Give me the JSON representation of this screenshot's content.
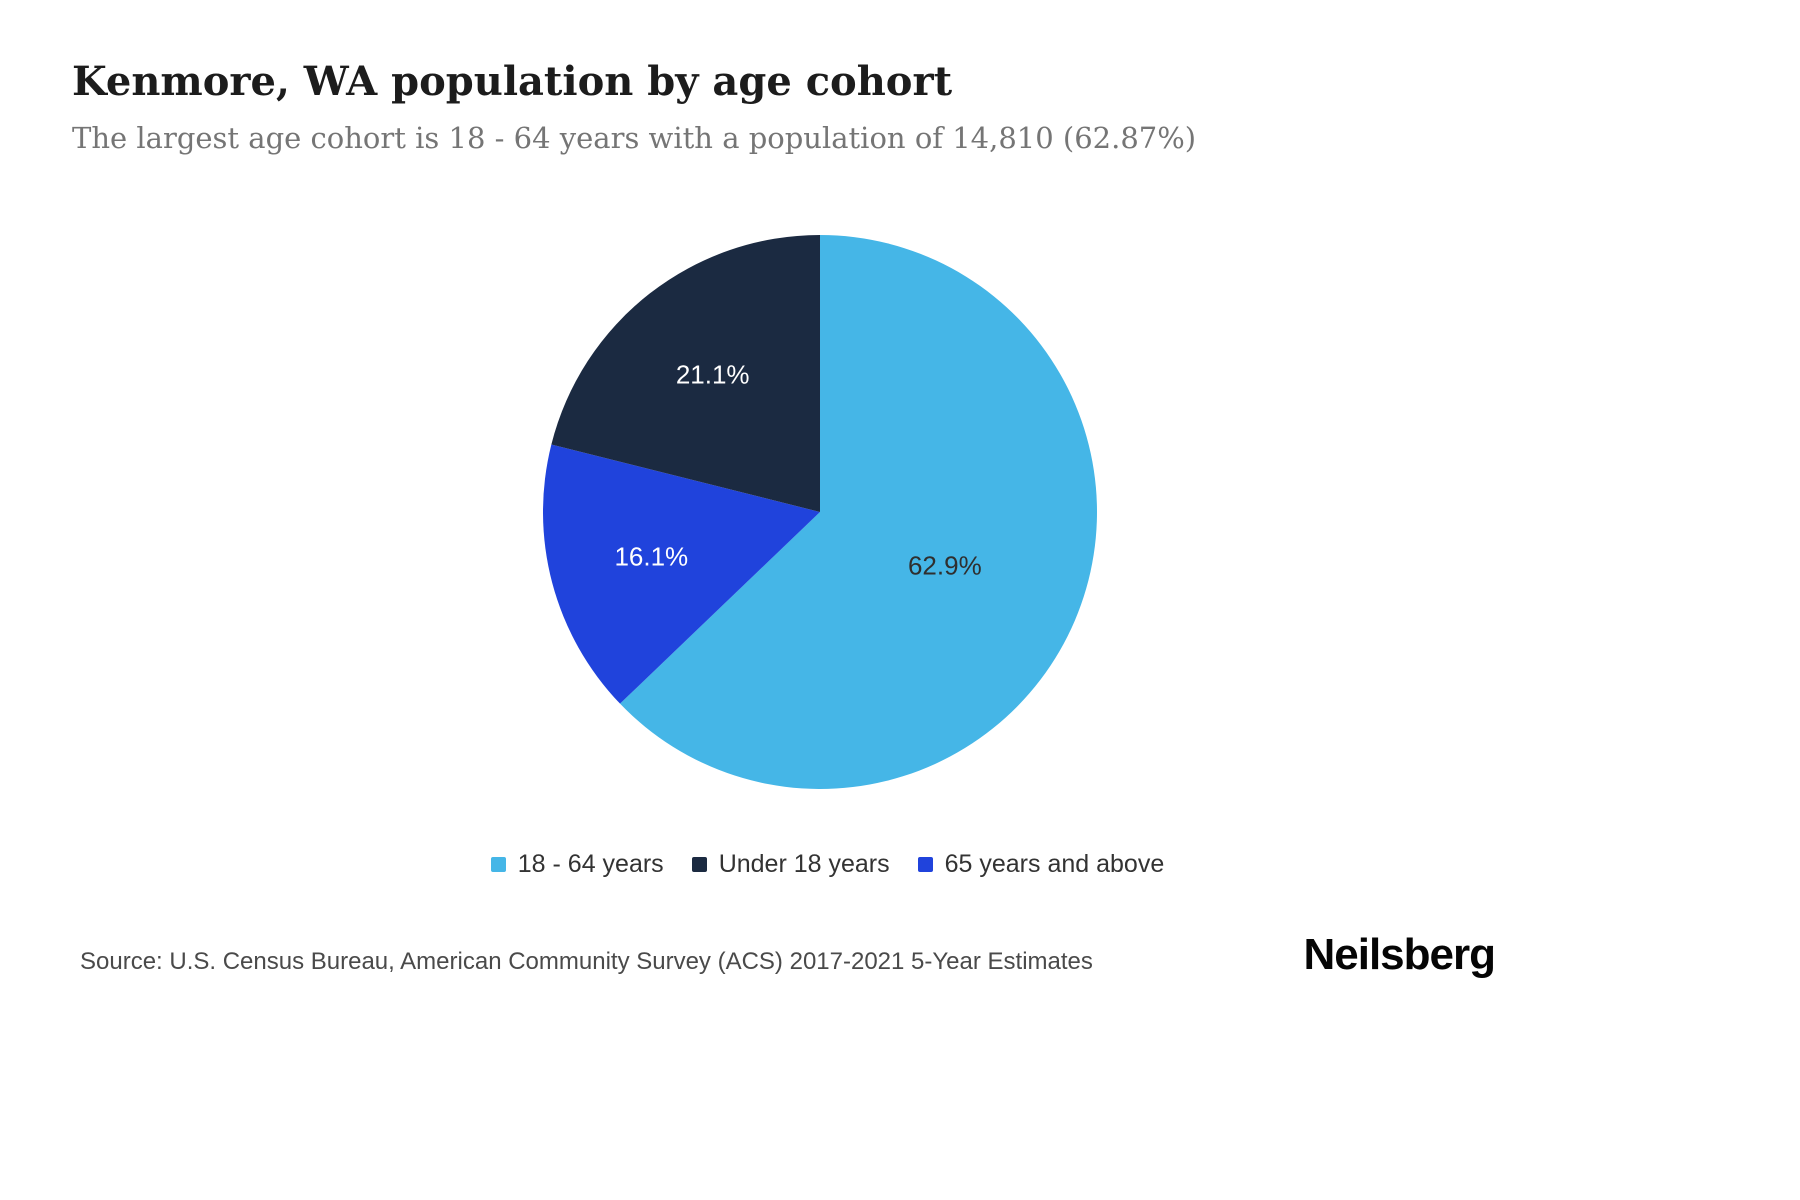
{
  "header": {
    "title": "Kenmore, WA population by age cohort",
    "subtitle": "The largest age cohort is 18 - 64 years with a population of 14,810 (62.87%)"
  },
  "footer": {
    "source": "Source: U.S. Census Bureau, American Community Survey (ACS) 2017-2021 5-Year Estimates",
    "brand": "Neilsberg"
  },
  "chart_data": {
    "type": "pie",
    "title": "Kenmore, WA population by age cohort",
    "unit": "percent",
    "start_angle_deg": 0,
    "direction": "clockwise",
    "legend_position": "bottom",
    "largest_cohort": {
      "label": "18 - 64 years",
      "population": "14,810",
      "percent": "62.87%"
    },
    "slices": [
      {
        "label": "18 - 64 years",
        "value": 62.9,
        "display": "62.9%",
        "color": "#45b6e7",
        "text_color": "#2f2f2f"
      },
      {
        "label": "65 years and above",
        "value": 16.1,
        "display": "16.1%",
        "color": "#2043dc",
        "text_color": "#ffffff"
      },
      {
        "label": "Under 18 years",
        "value": 21.1,
        "display": "21.1%",
        "color": "#1b2a41",
        "text_color": "#ffffff"
      }
    ],
    "legend_order": [
      0,
      2,
      1
    ]
  }
}
